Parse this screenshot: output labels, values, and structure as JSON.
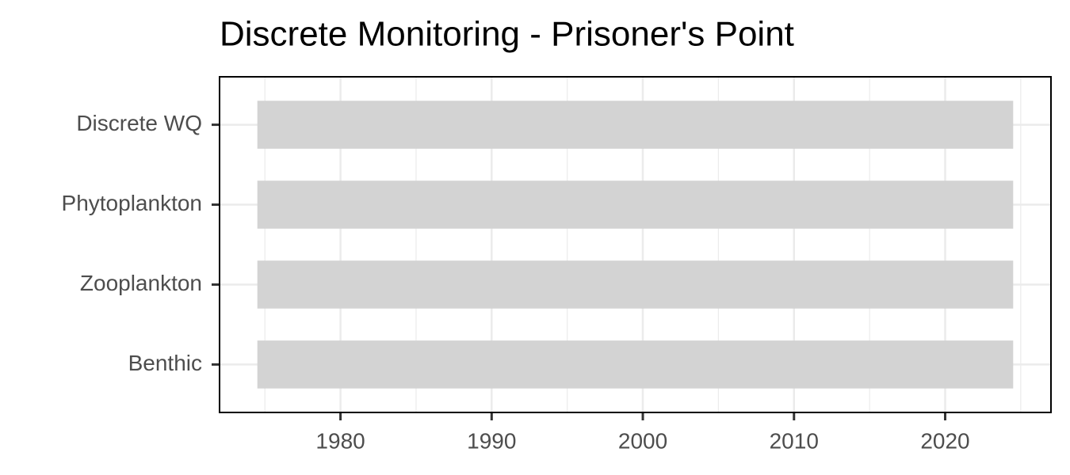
{
  "chart_data": {
    "type": "range_bar",
    "title": "Discrete Monitoring - Prisoner's Point",
    "categories": [
      "Discrete WQ",
      "Phytoplankton",
      "Zooplankton",
      "Benthic"
    ],
    "start": [
      1974.5,
      1974.5,
      1974.5,
      1974.5
    ],
    "end": [
      2024.5,
      2024.5,
      2024.5,
      2024.5
    ],
    "color": "#d3d3d3",
    "xlim": [
      1972,
      2027
    ],
    "xticks": [
      1980,
      1990,
      2000,
      2010,
      2020
    ],
    "grid": true
  }
}
